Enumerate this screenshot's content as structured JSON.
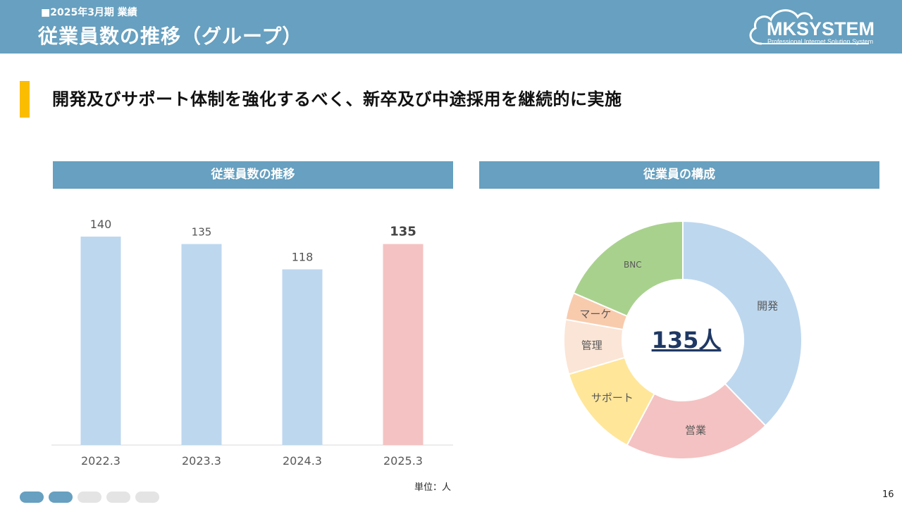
{
  "header": {
    "subtitle": "■2025年3月期 業績",
    "title": "従業員数の推移（グループ）"
  },
  "logo": {
    "name": "MKSYSTEM",
    "tagline": "Professional Internet Solution System"
  },
  "headline": "開発及びサポート体制を強化するべく、新卒及び中途採用を継続的に実施",
  "panels": {
    "left_title": "従業員数の推移",
    "right_title": "従業員の構成"
  },
  "unit_label": "単位：人",
  "page_number": "16",
  "pagination": {
    "total": 5,
    "active": [
      0,
      1
    ],
    "active_color": "#67a0c0",
    "inactive_color": "#e4e4e4"
  },
  "chart_data": [
    {
      "type": "bar",
      "categories": [
        "2022.3",
        "2023.3",
        "2024.3",
        "2025.3"
      ],
      "values": [
        140,
        135,
        118,
        135
      ],
      "labels": [
        "140",
        "135",
        "118",
        "135"
      ],
      "highlight_index": 3,
      "colors": {
        "default": "#bdd7ee",
        "highlight": "#f4c2c2"
      },
      "ylim": [
        0,
        140
      ]
    },
    {
      "type": "pie",
      "donut": true,
      "center_label": "135人",
      "slices": [
        {
          "label": "開発",
          "value": 51,
          "color": "#bdd7ee"
        },
        {
          "label": "営業",
          "value": 27,
          "color": "#f4c2c2"
        },
        {
          "label": "サポート",
          "value": 17,
          "color": "#ffe699"
        },
        {
          "label": "管理",
          "value": 10,
          "color": "#fbe5d6"
        },
        {
          "label": "マーケ",
          "value": 5,
          "color": "#f8cbad"
        },
        {
          "label": "BNC",
          "value": 25,
          "color": "#a9d18e"
        }
      ]
    }
  ]
}
